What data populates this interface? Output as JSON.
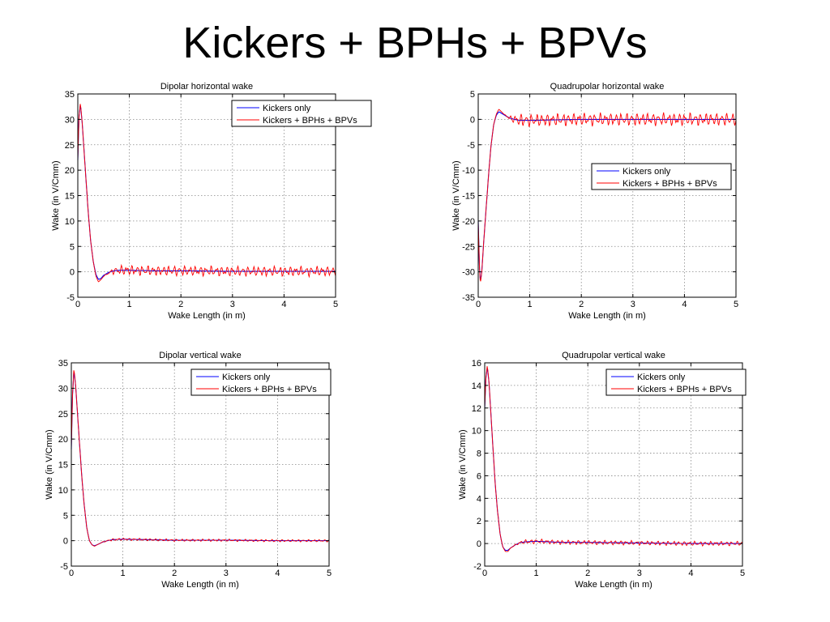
{
  "slide": {
    "title": "Kickers + BPHs + BPVs"
  },
  "colors": {
    "kickers_only": "#0000ff",
    "kickers_bphs_bpvs": "#ff0000"
  },
  "chart_data": [
    {
      "type": "line",
      "title": "Dipolar horizontal wake",
      "xlabel": "Wake Length (in m)",
      "ylabel": "Wake (in  V/Cmm)",
      "xlim": [
        0,
        5
      ],
      "ylim": [
        -5,
        35
      ],
      "xticks": [
        0,
        1,
        2,
        3,
        4,
        5
      ],
      "yticks": [
        -5,
        0,
        5,
        10,
        15,
        20,
        25,
        30,
        35
      ],
      "grid": true,
      "legend_position": "top-right",
      "series": [
        {
          "name": "Kickers only",
          "color": "#0000ff",
          "x": [
            0,
            0.02,
            0.05,
            0.08,
            0.12,
            0.16,
            0.2,
            0.25,
            0.3,
            0.35,
            0.4,
            0.45,
            0.5,
            0.6,
            0.7,
            0.8,
            1,
            1.5,
            2,
            3,
            4,
            5
          ],
          "y": [
            22,
            30,
            33,
            30,
            24,
            18,
            12,
            6,
            2,
            -0.5,
            -1.5,
            -1.3,
            -0.7,
            -0.1,
            0.2,
            0.3,
            0.3,
            0.2,
            0.2,
            0.1,
            0.1,
            0.1
          ]
        },
        {
          "name": "Kickers + BPHs + BPVs",
          "color": "#ff0000",
          "x": [
            0,
            0.02,
            0.05,
            0.08,
            0.12,
            0.16,
            0.2,
            0.25,
            0.3,
            0.35,
            0.4,
            0.45,
            0.5,
            0.6,
            0.7,
            0.8,
            1,
            1.5,
            2,
            3,
            4,
            5
          ],
          "y": [
            22,
            30,
            33.3,
            30,
            24,
            18,
            12,
            6,
            2,
            -0.8,
            -2,
            -1.5,
            -0.9,
            -0.2,
            0.2,
            0.3,
            0.3,
            0.2,
            0.2,
            0.1,
            0.1,
            0.1
          ],
          "noise_amplitude": 1.1,
          "noise_from": 0.5
        }
      ]
    },
    {
      "type": "line",
      "title": "Quadrupolar horizontal wake",
      "xlabel": "Wake Length (in m)",
      "ylabel": "Wake (in  V/Cmm)",
      "xlim": [
        0,
        5
      ],
      "ylim": [
        -35,
        5
      ],
      "xticks": [
        0,
        1,
        2,
        3,
        4,
        5
      ],
      "yticks": [
        -35,
        -30,
        -25,
        -20,
        -15,
        -10,
        -5,
        0,
        5
      ],
      "grid": true,
      "legend_position": "middle-right",
      "series": [
        {
          "name": "Kickers only",
          "color": "#0000ff",
          "x": [
            0,
            0.02,
            0.04,
            0.07,
            0.1,
            0.15,
            0.2,
            0.25,
            0.3,
            0.35,
            0.4,
            0.45,
            0.5,
            0.6,
            0.7,
            0.8,
            1,
            1.5,
            2,
            3,
            4,
            5
          ],
          "y": [
            -20,
            -28,
            -32,
            -30,
            -25,
            -18,
            -11,
            -5,
            -1,
            0.8,
            1.5,
            1.2,
            0.9,
            0.3,
            0,
            -0.2,
            -0.2,
            -0.1,
            0,
            0,
            0,
            0
          ]
        },
        {
          "name": "Kickers + BPHs + BPVs",
          "color": "#ff0000",
          "x": [
            0,
            0.02,
            0.04,
            0.07,
            0.1,
            0.15,
            0.2,
            0.25,
            0.3,
            0.35,
            0.4,
            0.45,
            0.5,
            0.6,
            0.7,
            0.8,
            1,
            1.5,
            2,
            3,
            4,
            5
          ],
          "y": [
            -20,
            -28,
            -32.5,
            -30,
            -25,
            -18,
            -11,
            -5,
            -1,
            1,
            2,
            1.5,
            1,
            0.3,
            0,
            -0.2,
            -0.2,
            -0.1,
            0,
            0,
            0,
            0
          ],
          "noise_amplitude": 1.4,
          "noise_from": 0.5
        }
      ]
    },
    {
      "type": "line",
      "title": "Dipolar vertical wake",
      "xlabel": "Wake Length (in m)",
      "ylabel": "Wake (in  V/Cmm)",
      "xlim": [
        0,
        5
      ],
      "ylim": [
        -5,
        35
      ],
      "xticks": [
        0,
        1,
        2,
        3,
        4,
        5
      ],
      "yticks": [
        -5,
        0,
        5,
        10,
        15,
        20,
        25,
        30,
        35
      ],
      "grid": true,
      "legend_position": "top-right",
      "series": [
        {
          "name": "Kickers only",
          "color": "#0000ff",
          "x": [
            0,
            0.02,
            0.05,
            0.08,
            0.12,
            0.16,
            0.2,
            0.25,
            0.3,
            0.35,
            0.4,
            0.45,
            0.5,
            0.6,
            0.7,
            0.8,
            1,
            1.5,
            2,
            3,
            4,
            5
          ],
          "y": [
            18,
            28,
            33.5,
            31,
            25,
            19,
            13,
            7,
            2.5,
            0,
            -0.8,
            -1,
            -0.8,
            -0.3,
            0,
            0.2,
            0.3,
            0.2,
            0.1,
            0.1,
            0,
            0
          ]
        },
        {
          "name": "Kickers + BPHs + BPVs",
          "color": "#ff0000",
          "x": [
            0,
            0.02,
            0.05,
            0.08,
            0.12,
            0.16,
            0.2,
            0.25,
            0.3,
            0.35,
            0.4,
            0.45,
            0.5,
            0.6,
            0.7,
            0.8,
            1,
            1.5,
            2,
            3,
            4,
            5
          ],
          "y": [
            18,
            28,
            34,
            31,
            25,
            19,
            13,
            7,
            2.5,
            0,
            -0.8,
            -1.1,
            -0.8,
            -0.3,
            0,
            0.2,
            0.3,
            0.2,
            0.1,
            0.1,
            0,
            0
          ],
          "noise_amplitude": 0.25,
          "noise_from": 0.5
        }
      ]
    },
    {
      "type": "line",
      "title": "Quadrupolar vertical wake",
      "xlabel": "Wake Length (in m)",
      "ylabel": "Wake (in  V/Cmm)",
      "xlim": [
        0,
        5
      ],
      "ylim": [
        -2,
        16
      ],
      "xticks": [
        0,
        1,
        2,
        3,
        4,
        5
      ],
      "yticks": [
        -2,
        0,
        2,
        4,
        6,
        8,
        10,
        12,
        14,
        16
      ],
      "grid": true,
      "legend_position": "top-right",
      "series": [
        {
          "name": "Kickers only",
          "color": "#0000ff",
          "x": [
            0,
            0.02,
            0.05,
            0.08,
            0.12,
            0.16,
            0.2,
            0.25,
            0.3,
            0.35,
            0.4,
            0.45,
            0.5,
            0.6,
            0.7,
            0.8,
            1,
            1.5,
            2,
            3,
            4,
            5
          ],
          "y": [
            12,
            14.5,
            15.6,
            14.5,
            11.5,
            8.5,
            5.5,
            2.8,
            0.8,
            -0.3,
            -0.6,
            -0.6,
            -0.4,
            -0.1,
            0.1,
            0.15,
            0.2,
            0.1,
            0.1,
            0.05,
            0,
            0
          ]
        },
        {
          "name": "Kickers + BPHs + BPVs",
          "color": "#ff0000",
          "x": [
            0,
            0.02,
            0.05,
            0.08,
            0.12,
            0.16,
            0.2,
            0.25,
            0.3,
            0.35,
            0.4,
            0.45,
            0.5,
            0.6,
            0.7,
            0.8,
            1,
            1.5,
            2,
            3,
            4,
            5
          ],
          "y": [
            12,
            14.5,
            15.8,
            14.5,
            11.5,
            8.5,
            5.5,
            2.8,
            0.8,
            -0.3,
            -0.7,
            -0.7,
            -0.4,
            -0.1,
            0.1,
            0.15,
            0.2,
            0.1,
            0.1,
            0.05,
            0,
            0
          ],
          "noise_amplitude": 0.22,
          "noise_from": 0.5
        }
      ]
    }
  ]
}
